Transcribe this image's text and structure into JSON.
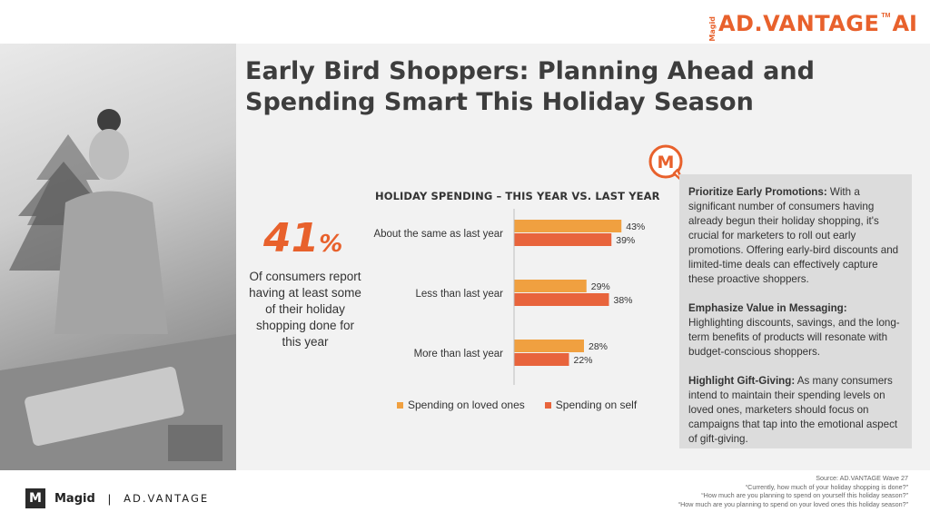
{
  "brand": {
    "small": "Magid",
    "main": "AD.VANTAGE",
    "tm": "TM",
    "ai": "AI"
  },
  "title": "Early Bird Shoppers: Planning Ahead and Spending Smart This Holiday Season",
  "stat": {
    "number": "41",
    "percent": "%",
    "text": "Of consumers report having at least some of their holiday shopping done for this year"
  },
  "chart_data": {
    "type": "bar",
    "orientation": "horizontal",
    "title": "HOLIDAY SPENDING – THIS YEAR VS. LAST YEAR",
    "categories": [
      "About the same as last year",
      "Less than last year",
      "More than last year"
    ],
    "series": [
      {
        "name": "Spending on loved ones",
        "values": [
          43,
          29,
          28
        ],
        "labels": [
          "43%",
          "29%",
          "28%"
        ],
        "color": "#f0a040"
      },
      {
        "name": "Spending on self",
        "values": [
          39,
          38,
          22
        ],
        "labels": [
          "39%",
          "38%",
          "22%"
        ],
        "color": "#e8643c"
      }
    ],
    "xlim": [
      0,
      50
    ],
    "legend": "bottom",
    "grid": false
  },
  "insights": [
    {
      "heading": "Prioritize Early Promotions:",
      "body": " With a significant number of consumers having already begun their holiday shopping, it's crucial for marketers to roll out early promotions. Offering early-bird discounts and limited-time deals can effectively capture these proactive shoppers."
    },
    {
      "heading": "Emphasize Value in Messaging:",
      "body": " Highlighting discounts, savings, and the long-term benefits of products will resonate with budget-conscious shoppers."
    },
    {
      "heading": "Highlight Gift-Giving:",
      "body": " As many consumers intend to maintain their spending levels on loved ones, marketers should focus on campaigns that tap into the emotional aspect of gift-giving."
    }
  ],
  "bubble_letter": "M",
  "footer": {
    "m": "M",
    "magid": "Magid",
    "sep": "|",
    "advantage": "AD.VANTAGE"
  },
  "source": [
    "Source: AD.VANTAGE Wave 27",
    "“Currently, how much of your holiday shopping is done?”",
    "“How much are you planning to spend on yourself this holiday season?”",
    "“How much are you planning to spend on your loved ones this holiday season?”"
  ],
  "colors": {
    "accent": "#e8612c",
    "loved": "#f0a040",
    "self": "#e8643c"
  }
}
